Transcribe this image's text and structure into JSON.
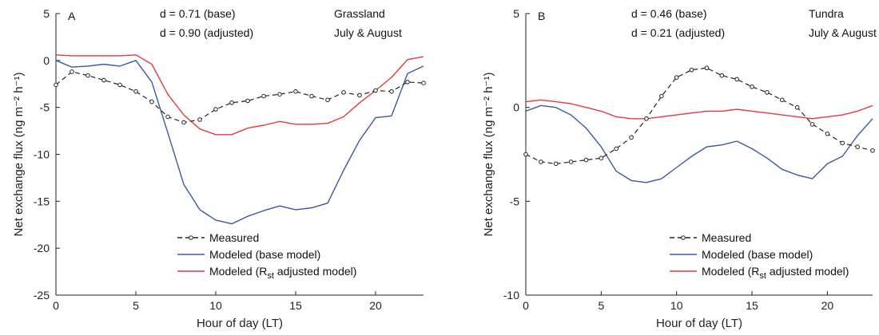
{
  "chart_data": [
    {
      "type": "line",
      "panel_letter": "A",
      "xlabel": "Hour of day (LT)",
      "ylabel": "Net exchange flux (ng m⁻² h⁻¹)",
      "xlim": [
        0,
        23
      ],
      "ylim": [
        -25,
        5
      ],
      "xticks": [
        0,
        5,
        10,
        15,
        20
      ],
      "yticks": [
        5,
        0,
        -5,
        -10,
        -15,
        -20,
        -25
      ],
      "stat_lines": [
        "d = 0.71 (base)",
        "d = 0.90 (adjusted)"
      ],
      "site_lines": [
        "Grassland",
        "July & August"
      ],
      "x": [
        0,
        1,
        2,
        3,
        4,
        5,
        6,
        7,
        8,
        9,
        10,
        11,
        12,
        13,
        14,
        15,
        16,
        17,
        18,
        19,
        20,
        21,
        22,
        23
      ],
      "series": [
        {
          "name": "Measured",
          "color": "#222222",
          "style": "dashed-circle",
          "values": [
            -2.6,
            -1.2,
            -1.6,
            -2.1,
            -2.6,
            -3.3,
            -4.4,
            -6.0,
            -6.6,
            -6.3,
            -5.2,
            -4.5,
            -4.3,
            -3.8,
            -3.6,
            -3.3,
            -3.8,
            -4.2,
            -3.4,
            -3.7,
            -3.2,
            -3.3,
            -2.3,
            -2.4
          ]
        },
        {
          "name": "Modeled (base model)",
          "color": "#3a56a8",
          "style": "solid",
          "values": [
            0.0,
            -0.7,
            -0.6,
            -0.4,
            -0.6,
            0.0,
            -2.3,
            -7.7,
            -13.2,
            -15.9,
            -17.0,
            -17.4,
            -16.6,
            -16.0,
            -15.5,
            -15.9,
            -15.7,
            -15.2,
            -11.7,
            -8.5,
            -6.1,
            -5.9,
            -1.4,
            -0.6
          ]
        },
        {
          "name": "Modeled (R_st adjusted model)",
          "color": "#e8393c",
          "style": "solid",
          "values": [
            0.6,
            0.5,
            0.5,
            0.5,
            0.5,
            0.6,
            -0.4,
            -3.6,
            -5.8,
            -7.3,
            -7.9,
            -7.9,
            -7.2,
            -6.9,
            -6.5,
            -6.8,
            -6.8,
            -6.7,
            -6.0,
            -4.5,
            -3.2,
            -1.8,
            0.1,
            0.4
          ]
        }
      ],
      "legend": {
        "placement": "lower-center",
        "entries": [
          {
            "prefix": "",
            "label": "Measured"
          },
          {
            "prefix": "",
            "label": "Modeled (base model)"
          },
          {
            "prefix": "Modeled (R",
            "sub": "st",
            "suffix": " adjusted model)"
          }
        ]
      }
    },
    {
      "type": "line",
      "panel_letter": "B",
      "xlabel": "Hour of day (LT)",
      "ylabel": "Net exchange flux (ng m⁻² h⁻¹)",
      "xlim": [
        0,
        23
      ],
      "ylim": [
        -10,
        5
      ],
      "xticks": [
        0,
        5,
        10,
        15,
        20
      ],
      "yticks": [
        5,
        0,
        -5,
        -10
      ],
      "stat_lines": [
        "d = 0.46 (base)",
        "d = 0.21 (adjusted)"
      ],
      "site_lines": [
        "Tundra",
        "July & August"
      ],
      "x": [
        0,
        1,
        2,
        3,
        4,
        5,
        6,
        7,
        8,
        9,
        10,
        11,
        12,
        13,
        14,
        15,
        16,
        17,
        18,
        19,
        20,
        21,
        22,
        23
      ],
      "series": [
        {
          "name": "Measured",
          "color": "#222222",
          "style": "dashed-circle",
          "values": [
            -2.5,
            -2.9,
            -3.0,
            -2.9,
            -2.8,
            -2.7,
            -2.2,
            -1.6,
            -0.6,
            0.6,
            1.6,
            2.0,
            2.1,
            1.7,
            1.5,
            1.1,
            0.8,
            0.4,
            0.0,
            -0.9,
            -1.4,
            -1.9,
            -2.1,
            -2.3
          ]
        },
        {
          "name": "Modeled (base model)",
          "color": "#3a56a8",
          "style": "solid",
          "values": [
            -0.2,
            0.1,
            0.0,
            -0.4,
            -1.1,
            -2.1,
            -3.4,
            -3.9,
            -4.0,
            -3.8,
            -3.2,
            -2.6,
            -2.1,
            -2.0,
            -1.8,
            -2.2,
            -2.7,
            -3.3,
            -3.6,
            -3.8,
            -3.0,
            -2.6,
            -1.5,
            -0.6
          ]
        },
        {
          "name": "Modeled (R_st adjusted model)",
          "color": "#e8393c",
          "style": "solid",
          "values": [
            0.3,
            0.4,
            0.3,
            0.2,
            0.0,
            -0.2,
            -0.5,
            -0.6,
            -0.6,
            -0.5,
            -0.4,
            -0.3,
            -0.2,
            -0.2,
            -0.1,
            -0.2,
            -0.3,
            -0.4,
            -0.5,
            -0.6,
            -0.5,
            -0.4,
            -0.2,
            0.1
          ]
        }
      ],
      "legend": {
        "placement": "lower-right",
        "entries": [
          {
            "prefix": "",
            "label": "Measured"
          },
          {
            "prefix": "",
            "label": "Modeled (base model)"
          },
          {
            "prefix": "Modeled (R",
            "sub": "st",
            "suffix": " adjusted model)"
          }
        ]
      }
    }
  ]
}
